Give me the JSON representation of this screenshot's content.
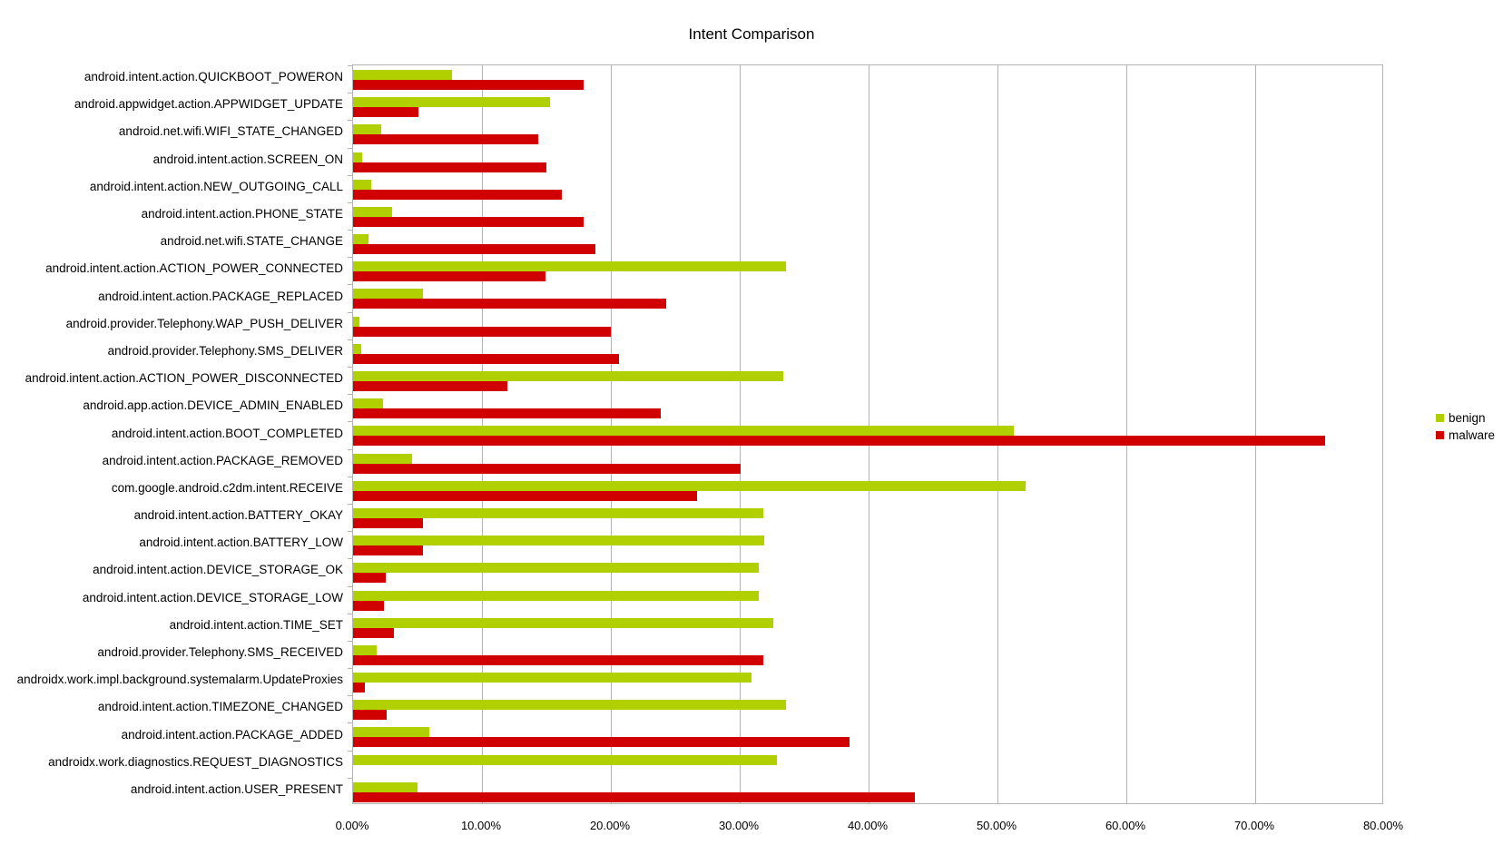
{
  "chart_data": {
    "type": "bar",
    "orientation": "horizontal",
    "title": "Intent Comparison",
    "xlabel": "",
    "ylabel": "",
    "xlim": [
      0,
      80
    ],
    "x_tick_labels": [
      "0.00%",
      "10.00%",
      "20.00%",
      "30.00%",
      "40.00%",
      "50.00%",
      "60.00%",
      "70.00%",
      "80.00%"
    ],
    "grid": true,
    "legend_position": "right",
    "categories": [
      "android.intent.action.QUICKBOOT_POWERON",
      "android.appwidget.action.APPWIDGET_UPDATE",
      "android.net.wifi.WIFI_STATE_CHANGED",
      "android.intent.action.SCREEN_ON",
      "android.intent.action.NEW_OUTGOING_CALL",
      "android.intent.action.PHONE_STATE",
      "android.net.wifi.STATE_CHANGE",
      "android.intent.action.ACTION_POWER_CONNECTED",
      "android.intent.action.PACKAGE_REPLACED",
      "android.provider.Telephony.WAP_PUSH_DELIVER",
      "android.provider.Telephony.SMS_DELIVER",
      "android.intent.action.ACTION_POWER_DISCONNECTED",
      "android.app.action.DEVICE_ADMIN_ENABLED",
      "android.intent.action.BOOT_COMPLETED",
      "android.intent.action.PACKAGE_REMOVED",
      "com.google.android.c2dm.intent.RECEIVE",
      "android.intent.action.BATTERY_OKAY",
      "android.intent.action.BATTERY_LOW",
      "android.intent.action.DEVICE_STORAGE_OK",
      "android.intent.action.DEVICE_STORAGE_LOW",
      "android.intent.action.TIME_SET",
      "android.provider.Telephony.SMS_RECEIVED",
      "androidx.work.impl.background.systemalarm.UpdateProxies",
      "android.intent.action.TIMEZONE_CHANGED",
      "android.intent.action.PACKAGE_ADDED",
      "androidx.work.diagnostics.REQUEST_DIAGNOSTICS",
      "android.intent.action.USER_PRESENT"
    ],
    "series": [
      {
        "name": "benign",
        "color": "#b0d000",
        "values": [
          7.7,
          15.3,
          2.2,
          0.7,
          1.4,
          3.0,
          1.2,
          33.6,
          5.4,
          0.5,
          0.6,
          33.4,
          2.3,
          51.3,
          4.6,
          52.2,
          31.8,
          31.9,
          31.5,
          31.5,
          32.6,
          1.8,
          30.9,
          33.6,
          5.9,
          32.9,
          5.0
        ]
      },
      {
        "name": "malware",
        "color": "#d00000",
        "values": [
          17.9,
          5.1,
          14.4,
          15.0,
          16.2,
          17.9,
          18.8,
          14.9,
          24.3,
          20.0,
          20.6,
          12.0,
          23.9,
          75.4,
          30.1,
          26.7,
          5.4,
          5.4,
          2.5,
          2.4,
          3.2,
          31.8,
          0.9,
          2.6,
          38.5,
          0.0,
          43.6
        ]
      }
    ]
  }
}
